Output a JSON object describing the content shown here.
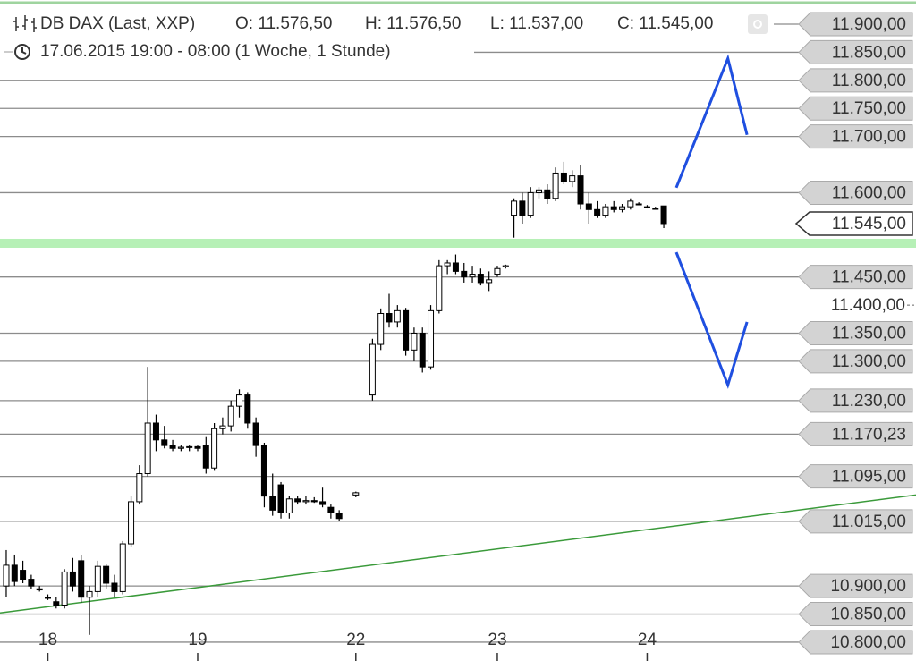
{
  "header": {
    "instrument": "DB DAX (Last, XXP)",
    "ohlc": [
      "O: 11.576,50",
      "H: 11.576,50",
      "L: 11.537,00",
      "C: 11.545,00"
    ],
    "period": "17.06.2015 19:00 - 08:00 (1 Woche, 1 Stunde)"
  },
  "chart_data": {
    "type": "candlestick",
    "x": [
      0,
      1,
      2,
      3,
      4,
      5,
      6,
      7,
      8,
      9,
      10,
      11,
      12,
      13,
      14,
      15,
      16,
      17,
      18,
      19,
      20,
      21,
      22,
      23,
      24,
      25,
      26,
      27,
      28,
      29,
      30,
      31,
      32,
      33,
      34,
      35,
      36,
      37,
      38,
      39,
      40,
      42,
      44,
      45,
      46,
      47,
      48,
      49,
      50,
      51,
      52,
      53,
      54,
      55,
      56,
      57,
      58,
      59,
      60,
      61,
      62,
      63,
      64,
      65,
      66,
      67,
      68,
      69,
      70,
      71,
      72,
      73,
      74,
      75,
      76,
      77,
      78,
      79
    ],
    "open": [
      10900,
      10937,
      10928,
      10912,
      10895,
      10880,
      10872,
      10866,
      10925,
      10945,
      10880,
      10890,
      10935,
      10905,
      10890,
      10975,
      11050,
      11100,
      11190,
      11160,
      11150,
      11145,
      11147,
      11148,
      11150,
      11110,
      11180,
      11185,
      11220,
      11240,
      11190,
      11150,
      11060,
      11080,
      11030,
      11055,
      11050,
      11052,
      11050,
      11040,
      11030,
      11062,
      11240,
      11330,
      11385,
      11370,
      11390,
      11320,
      11350,
      11290,
      11390,
      11470,
      11475,
      11460,
      11450,
      11455,
      11440,
      11455,
      11468,
      11560,
      11585,
      11560,
      11600,
      11605,
      11590,
      11635,
      11620,
      11630,
      11580,
      11570,
      11560,
      11575,
      11570,
      11575,
      11580,
      11575,
      11572,
      11576.5
    ],
    "high": [
      10964,
      10956,
      10945,
      10920,
      10900,
      10885,
      10880,
      10930,
      10950,
      10955,
      10900,
      10945,
      10940,
      10920,
      10980,
      11060,
      11115,
      11290,
      11205,
      11185,
      11160,
      11150,
      11150,
      11150,
      11165,
      11190,
      11200,
      11230,
      11250,
      11245,
      11200,
      11155,
      11100,
      11085,
      11060,
      11060,
      11060,
      11058,
      11075,
      11045,
      11035,
      11068,
      11340,
      11394,
      11420,
      11400,
      11395,
      11360,
      11360,
      11400,
      11480,
      11480,
      11490,
      11475,
      11470,
      11465,
      11460,
      11470,
      11472,
      11590,
      11600,
      11610,
      11610,
      11615,
      11645,
      11655,
      11640,
      11650,
      11600,
      11585,
      11580,
      11585,
      11580,
      11590,
      11583,
      11578,
      11575,
      11576.5
    ],
    "low": [
      10880,
      10900,
      10905,
      10895,
      10890,
      10875,
      10860,
      10860,
      10890,
      10870,
      10813,
      10880,
      10895,
      10880,
      10885,
      10970,
      11045,
      11095,
      11140,
      11145,
      11140,
      11140,
      11140,
      11140,
      11100,
      11105,
      11170,
      11175,
      11200,
      11180,
      11130,
      11040,
      11025,
      11020,
      11020,
      11045,
      11045,
      11048,
      11040,
      11020,
      11015,
      11058,
      11230,
      11320,
      11360,
      11360,
      11310,
      11300,
      11280,
      11285,
      11385,
      11455,
      11455,
      11440,
      11440,
      11435,
      11425,
      11450,
      11465,
      11520,
      11545,
      11555,
      11590,
      11580,
      11585,
      11615,
      11610,
      11570,
      11545,
      11555,
      11555,
      11565,
      11565,
      11570,
      11578,
      11572,
      11570,
      11537
    ],
    "close": [
      10937,
      10908,
      10912,
      10900,
      10893,
      10878,
      10866,
      10925,
      10900,
      10880,
      10890,
      10935,
      10905,
      10890,
      10975,
      11050,
      11100,
      11190,
      11160,
      11150,
      11145,
      11147,
      11148,
      11145,
      11110,
      11180,
      11185,
      11220,
      11240,
      11190,
      11150,
      11060,
      11035,
      11030,
      11055,
      11050,
      11052,
      11050,
      11045,
      11030,
      11020,
      11066,
      11330,
      11385,
      11370,
      11390,
      11320,
      11350,
      11290,
      11390,
      11470,
      11475,
      11460,
      11450,
      11455,
      11440,
      11445,
      11465,
      11470,
      11585,
      11560,
      11600,
      11605,
      11590,
      11635,
      11620,
      11630,
      11580,
      11570,
      11560,
      11575,
      11570,
      11575,
      11585,
      11580,
      11575,
      11572,
      11545
    ],
    "xlim": [
      -0.75,
      109.3
    ],
    "ylim": [
      10766.5,
      11943
    ],
    "xticks": [
      {
        "value": 5,
        "label": "18"
      },
      {
        "value": 23,
        "label": "19"
      },
      {
        "value": 42,
        "label": "22"
      },
      {
        "value": 59,
        "label": "23"
      },
      {
        "value": 77,
        "label": "24"
      }
    ],
    "yticks": [
      {
        "value": 11400,
        "label": "11.400,00"
      }
    ],
    "levels": [
      {
        "value": 11900,
        "label": "11.900,00"
      },
      {
        "value": 11850,
        "label": "11.850,00"
      },
      {
        "value": 11800,
        "label": "11.800,00"
      },
      {
        "value": 11750,
        "label": "11.750,00"
      },
      {
        "value": 11700,
        "label": "11.700,00"
      },
      {
        "value": 11600,
        "label": "11.600,00"
      },
      {
        "value": 11450,
        "label": "11.450,00"
      },
      {
        "value": 11350,
        "label": "11.350,00"
      },
      {
        "value": 11300,
        "label": "11.300,00"
      },
      {
        "value": 11230,
        "label": "11.230,00"
      },
      {
        "value": 11170.23,
        "label": "11.170,23"
      },
      {
        "value": 11095,
        "label": "11.095,00"
      },
      {
        "value": 11015,
        "label": "11.015,00"
      },
      {
        "value": 10900,
        "label": "10.900,00"
      },
      {
        "value": 10850,
        "label": "10.850,00"
      },
      {
        "value": 10800,
        "label": "10.800,00"
      }
    ],
    "last_price": {
      "value": 11545,
      "label": "11.545,00"
    },
    "zone": {
      "value": 11510,
      "color": "#b6f0b6"
    },
    "trendline": {
      "x": [
        -0.75,
        109.3
      ],
      "y": [
        10852,
        11062
      ],
      "color": "#3a9a3a"
    },
    "scenarios": [
      {
        "x": [
          80.5,
          86.7,
          89
        ],
        "y": [
          11609,
          11839,
          11703
        ],
        "color": "#1f4fe0"
      },
      {
        "x": [
          80.5,
          86.7,
          89
        ],
        "y": [
          11494,
          11258,
          11370
        ],
        "color": "#1f4fe0"
      }
    ],
    "up_color": "#ffffff",
    "down_color": "#000000"
  }
}
